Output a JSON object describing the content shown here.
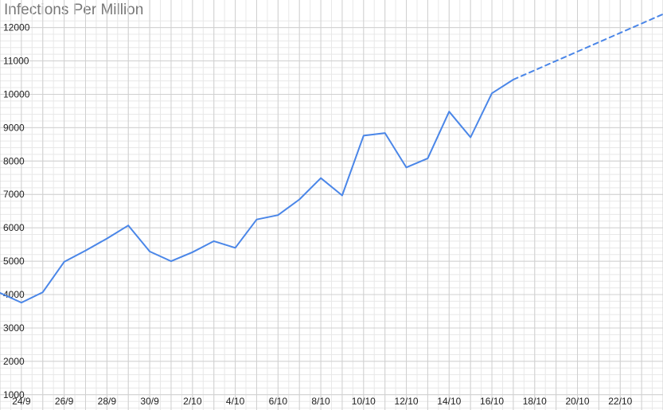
{
  "chart_data": {
    "type": "line",
    "title": "Infections Per Million",
    "xlabel": "",
    "ylabel": "",
    "grid": true,
    "legend": "none",
    "colors": {
      "line": "#4a86e8",
      "grid_major": "#d0d0d0",
      "grid_minor": "#e8e8e8"
    },
    "ylim": [
      900,
      12300
    ],
    "yticks": [
      1000,
      2000,
      3000,
      4000,
      5000,
      6000,
      7000,
      8000,
      9000,
      10000,
      11000,
      12000
    ],
    "xlim": [
      "2020-09-23",
      "2020-10-24"
    ],
    "xticks": [
      "24/9",
      "26/9",
      "28/9",
      "30/9",
      "2/10",
      "4/10",
      "6/10",
      "8/10",
      "10/10",
      "12/10",
      "14/10",
      "16/10",
      "18/10",
      "20/10",
      "22/10"
    ],
    "series": [
      {
        "style": "solid",
        "x": [
          "2020-09-23",
          "2020-09-24",
          "2020-09-25",
          "2020-09-26",
          "2020-09-27",
          "2020-09-28",
          "2020-09-29",
          "2020-09-30",
          "2020-10-01",
          "2020-10-02",
          "2020-10-03",
          "2020-10-04",
          "2020-10-05",
          "2020-10-06",
          "2020-10-07",
          "2020-10-08",
          "2020-10-09",
          "2020-10-10",
          "2020-10-11",
          "2020-10-12",
          "2020-10-13",
          "2020-10-14",
          "2020-10-15",
          "2020-10-16",
          "2020-10-17"
        ],
        "values": [
          4050,
          3760,
          4070,
          4980,
          5320,
          5680,
          6070,
          5290,
          5000,
          5270,
          5600,
          5400,
          6250,
          6380,
          6850,
          7490,
          6970,
          8760,
          8840,
          7810,
          8080,
          9480,
          8710,
          10030,
          10440
        ]
      },
      {
        "style": "dashed",
        "x": [
          "2020-10-17",
          "2020-10-24"
        ],
        "values": [
          10440,
          12400
        ]
      }
    ]
  }
}
